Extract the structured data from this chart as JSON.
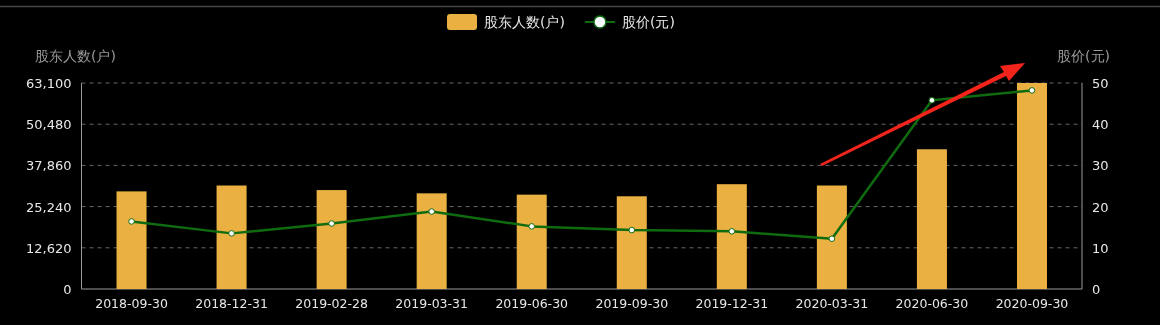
{
  "chart_data": {
    "type": "bar",
    "categories": [
      "2018-09-30",
      "2018-12-31",
      "2019-02-28",
      "2019-03-31",
      "2019-06-30",
      "2019-09-30",
      "2019-12-31",
      "2020-03-31",
      "2020-06-30",
      "2020-09-30"
    ],
    "series": [
      {
        "name": "股东人数(户)",
        "color": "#eab142",
        "values": [
          29900,
          31700,
          30300,
          29300,
          28900,
          28400,
          32100,
          31700,
          42800,
          63100
        ]
      },
      {
        "name": "股价(元)",
        "type": "line",
        "axis": "y2",
        "color": "#0f6b0f",
        "marker": "circle",
        "values": [
          16.4,
          13.5,
          15.9,
          18.8,
          15.2,
          14.3,
          14.0,
          12.2,
          45.8,
          48.2
        ]
      }
    ],
    "ylabel": "股东人数(户)",
    "y2label": "股价(元)",
    "ylim": [
      0,
      63100
    ],
    "yticks": [
      0,
      {
        "value": 12620,
        "label": "12,620"
      },
      {
        "value": 25240,
        "label": "25,240"
      },
      {
        "value": 37860,
        "label": "37,860"
      },
      {
        "value": 50480,
        "label": "50,480"
      },
      {
        "value": 63100,
        "label": "63,100"
      }
    ],
    "y2lim": [
      0,
      50
    ],
    "y2ticks": [
      0,
      10,
      20,
      30,
      40,
      50
    ],
    "grid": "y",
    "legend": "top"
  }
}
